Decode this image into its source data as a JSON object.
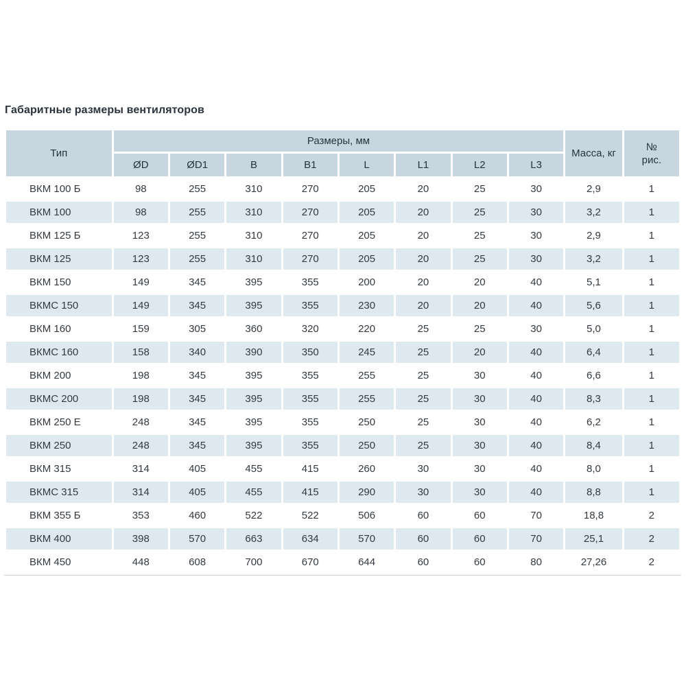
{
  "page": {
    "title": "Габаритные размеры вентиляторов"
  },
  "table": {
    "header": {
      "type": "Тип",
      "dimensions_group": "Размеры, мм",
      "dim_columns": [
        "ØD",
        "ØD1",
        "B",
        "B1",
        "L",
        "L1",
        "L2",
        "L3"
      ],
      "mass": "Масса, кг",
      "fig": "№\nрис."
    },
    "rows": [
      {
        "type": "ВКМ 100 Б",
        "dims": [
          "98",
          "255",
          "310",
          "270",
          "205",
          "20",
          "25",
          "30"
        ],
        "mass": "2,9",
        "fig": "1"
      },
      {
        "type": "ВКМ 100",
        "dims": [
          "98",
          "255",
          "310",
          "270",
          "205",
          "20",
          "25",
          "30"
        ],
        "mass": "3,2",
        "fig": "1"
      },
      {
        "type": "ВКМ 125 Б",
        "dims": [
          "123",
          "255",
          "310",
          "270",
          "205",
          "20",
          "25",
          "30"
        ],
        "mass": "2,9",
        "fig": "1"
      },
      {
        "type": "ВКМ 125",
        "dims": [
          "123",
          "255",
          "310",
          "270",
          "205",
          "20",
          "25",
          "30"
        ],
        "mass": "3,2",
        "fig": "1"
      },
      {
        "type": "ВКМ 150",
        "dims": [
          "149",
          "345",
          "395",
          "355",
          "200",
          "20",
          "20",
          "40"
        ],
        "mass": "5,1",
        "fig": "1"
      },
      {
        "type": "ВКМС 150",
        "dims": [
          "149",
          "345",
          "395",
          "355",
          "230",
          "20",
          "20",
          "40"
        ],
        "mass": "5,6",
        "fig": "1"
      },
      {
        "type": "ВКМ 160",
        "dims": [
          "159",
          "305",
          "360",
          "320",
          "220",
          "25",
          "25",
          "30"
        ],
        "mass": "5,0",
        "fig": "1"
      },
      {
        "type": "ВКМС 160",
        "dims": [
          "158",
          "340",
          "390",
          "350",
          "245",
          "25",
          "20",
          "40"
        ],
        "mass": "6,4",
        "fig": "1"
      },
      {
        "type": "ВКМ 200",
        "dims": [
          "198",
          "345",
          "395",
          "355",
          "255",
          "25",
          "30",
          "40"
        ],
        "mass": "6,6",
        "fig": "1"
      },
      {
        "type": "ВКМС 200",
        "dims": [
          "198",
          "345",
          "395",
          "355",
          "255",
          "25",
          "30",
          "40"
        ],
        "mass": "8,3",
        "fig": "1"
      },
      {
        "type": "ВКМ 250 Е",
        "dims": [
          "248",
          "345",
          "395",
          "355",
          "250",
          "25",
          "30",
          "40"
        ],
        "mass": "6,2",
        "fig": "1"
      },
      {
        "type": "ВКМ 250",
        "dims": [
          "248",
          "345",
          "395",
          "355",
          "250",
          "25",
          "30",
          "40"
        ],
        "mass": "8,4",
        "fig": "1"
      },
      {
        "type": "ВКМ 315",
        "dims": [
          "314",
          "405",
          "455",
          "415",
          "260",
          "30",
          "30",
          "40"
        ],
        "mass": "8,0",
        "fig": "1"
      },
      {
        "type": "ВКМС 315",
        "dims": [
          "314",
          "405",
          "455",
          "415",
          "290",
          "30",
          "30",
          "40"
        ],
        "mass": "8,8",
        "fig": "1"
      },
      {
        "type": "ВКМ 355 Б",
        "dims": [
          "353",
          "460",
          "522",
          "522",
          "506",
          "60",
          "60",
          "70"
        ],
        "mass": "18,8",
        "fig": "2"
      },
      {
        "type": "ВКМ 400",
        "dims": [
          "398",
          "570",
          "663",
          "634",
          "570",
          "60",
          "60",
          "70"
        ],
        "mass": "25,1",
        "fig": "2"
      },
      {
        "type": "ВКМ 450",
        "dims": [
          "448",
          "608",
          "700",
          "670",
          "644",
          "60",
          "60",
          "80"
        ],
        "mass": "27,26",
        "fig": "2"
      }
    ]
  },
  "colors": {
    "header_bg": "#c8d7df",
    "stripe_bg": "#dde9ee",
    "header_text": "#24333f",
    "body_text": "#343940",
    "bottom_rule": "#c9cfd3"
  }
}
